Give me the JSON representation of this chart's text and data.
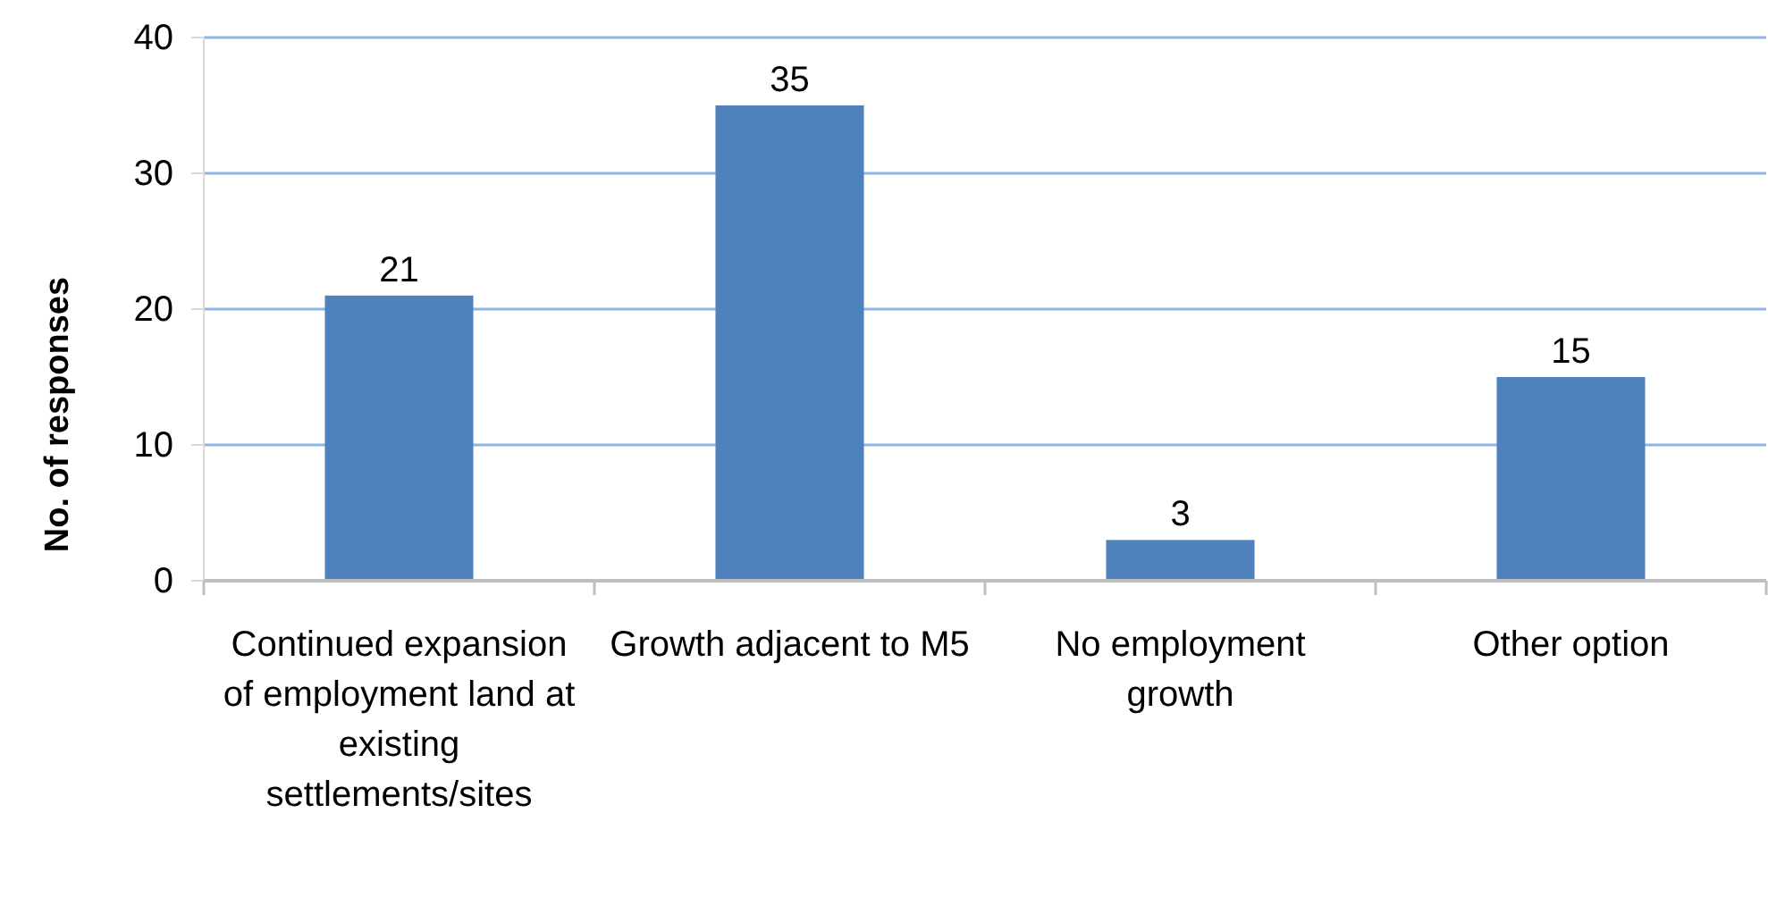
{
  "chart_data": {
    "type": "bar",
    "ylabel": "No. of responses",
    "categories": [
      "Continued expansion of employment land at existing settlements/sites",
      "Growth adjacent to M5",
      "No employment growth",
      "Other option"
    ],
    "values": [
      21,
      35,
      3,
      15
    ],
    "color": "#4f81bd",
    "ylim": [
      0,
      40
    ],
    "yticks": [
      0,
      10,
      20,
      30,
      40
    ],
    "grid": "y",
    "data_labels": true
  }
}
